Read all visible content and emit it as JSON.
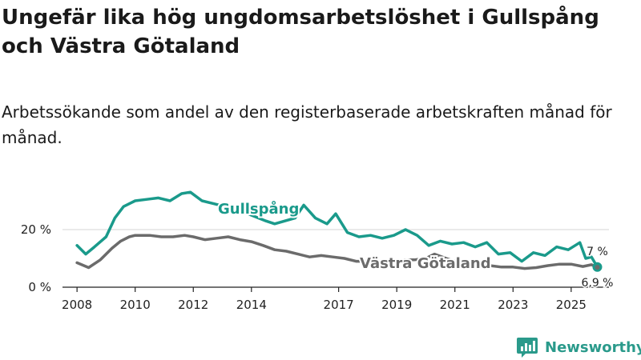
{
  "title": "Ungefär lika hög ungdomsarbetslöshet i Gullspång och Västra Götaland",
  "subtitle": "Arbetssökande som andel av den registerbaserade arbetskraften månad för månad.",
  "brand": "Newsworthy",
  "colors": {
    "gullspang": "#1a9a8b",
    "vastra": "#6b6b6b",
    "axis": "#222222",
    "grid": "#d6d6d6"
  },
  "chart_data": {
    "type": "line",
    "title": "",
    "xlabel": "",
    "ylabel": "",
    "xlim": [
      2007.5,
      2026.3
    ],
    "ylim": [
      0,
      40
    ],
    "x_ticks": [
      2008,
      2010,
      2012,
      2014,
      2017,
      2019,
      2021,
      2023,
      2025
    ],
    "y_ticks": [
      {
        "value": 0,
        "label": "0 %"
      },
      {
        "value": 20,
        "label": "20 %"
      }
    ],
    "series": [
      {
        "name": "Gullspång",
        "label_text": "Gullspång",
        "end_label": "7 %",
        "x": [
          2008.0,
          2008.3,
          2008.6,
          2009.0,
          2009.3,
          2009.6,
          2010.0,
          2010.4,
          2010.8,
          2011.2,
          2011.6,
          2011.9,
          2012.3,
          2012.7,
          2013.1,
          2013.6,
          2014.0,
          2014.5,
          2014.8,
          2015.5,
          2015.8,
          2016.2,
          2016.6,
          2016.9,
          2017.3,
          2017.7,
          2018.1,
          2018.5,
          2018.9,
          2019.3,
          2019.7,
          2020.1,
          2020.5,
          2020.9,
          2021.3,
          2021.7,
          2022.1,
          2022.5,
          2022.9,
          2023.3,
          2023.7,
          2024.1,
          2024.5,
          2024.9,
          2025.3,
          2025.5,
          2025.7,
          2025.9
        ],
        "values": [
          14.5,
          11.5,
          14,
          17.5,
          24,
          28,
          30,
          30.5,
          31,
          30,
          32.5,
          33,
          30,
          29,
          28,
          27,
          25,
          23,
          22,
          24,
          28.5,
          24,
          22,
          25.5,
          19,
          17.5,
          18,
          17,
          18,
          20,
          18,
          14.5,
          16,
          15,
          15.5,
          14,
          15.5,
          11.5,
          12,
          9,
          12,
          11,
          14,
          13,
          15.5,
          10,
          10.5,
          7
        ]
      },
      {
        "name": "Västra Götaland",
        "label_text": "Västra Götaland",
        "end_label": "6,9 %",
        "x": [
          2008.0,
          2008.4,
          2008.8,
          2009.2,
          2009.5,
          2009.8,
          2010.0,
          2010.5,
          2010.9,
          2011.3,
          2011.7,
          2012.0,
          2012.4,
          2012.8,
          2013.2,
          2013.6,
          2014.0,
          2014.4,
          2014.8,
          2015.2,
          2015.6,
          2016.0,
          2016.4,
          2016.8,
          2017.2,
          2017.6,
          2018.0,
          2018.4,
          2018.8,
          2019.2,
          2019.6,
          2020.0,
          2020.3,
          2020.7,
          2021.0,
          2021.4,
          2021.8,
          2022.2,
          2022.6,
          2023.0,
          2023.4,
          2023.8,
          2024.2,
          2024.6,
          2025.0,
          2025.4,
          2025.7,
          2025.9
        ],
        "values": [
          8.5,
          6.8,
          9.5,
          13.5,
          16,
          17.5,
          18,
          18,
          17.5,
          17.5,
          18,
          17.5,
          16.5,
          17,
          17.5,
          16.5,
          15.8,
          14.5,
          13,
          12.5,
          11.5,
          10.5,
          11,
          10.5,
          10,
          9,
          9,
          8.8,
          9,
          9.5,
          9.5,
          10,
          11.5,
          10,
          9,
          8.5,
          8,
          7.5,
          7,
          7,
          6.5,
          6.8,
          7.5,
          8,
          8,
          7.2,
          7.8,
          6.9
        ]
      }
    ]
  }
}
